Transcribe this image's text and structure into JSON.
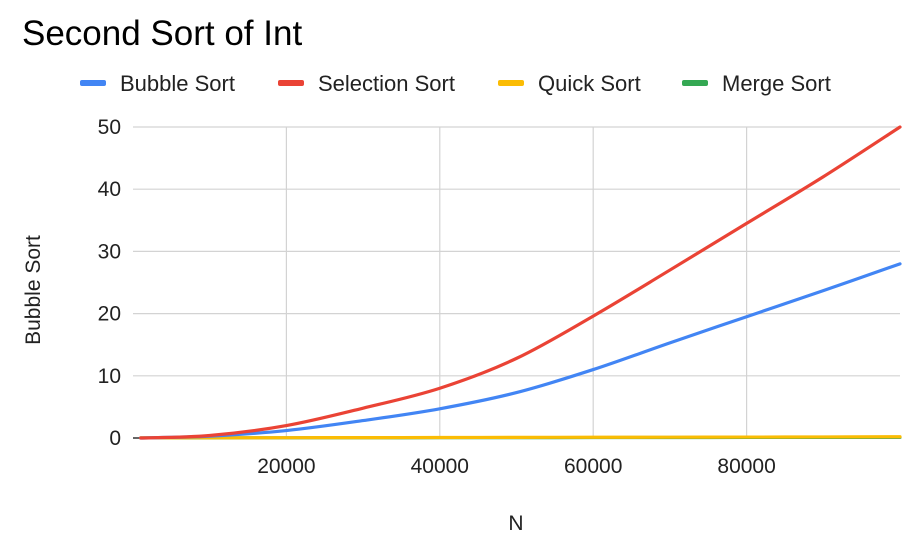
{
  "chart_data": {
    "type": "line",
    "title": "Second Sort of Int",
    "xlabel": "N",
    "ylabel": "Bubble Sort",
    "xlim": [
      0,
      100000
    ],
    "ylim": [
      0,
      50
    ],
    "x_ticks": [
      20000,
      40000,
      60000,
      80000
    ],
    "y_ticks": [
      0,
      10,
      20,
      30,
      40,
      50
    ],
    "grid": true,
    "legend_position": "top",
    "x": [
      1000,
      10000,
      20000,
      30000,
      40000,
      50000,
      60000,
      70000,
      80000,
      90000,
      100000
    ],
    "series": [
      {
        "name": "Bubble Sort",
        "color": "#4285F4",
        "values": [
          0.0,
          0.3,
          1.2,
          2.8,
          4.7,
          7.3,
          11.0,
          15.3,
          19.5,
          23.7,
          28.0
        ]
      },
      {
        "name": "Selection Sort",
        "color": "#EA4335",
        "values": [
          0.0,
          0.4,
          2.0,
          4.8,
          8.0,
          12.8,
          19.6,
          27.0,
          34.5,
          42.0,
          50.0
        ]
      },
      {
        "name": "Quick Sort",
        "color": "#FBBC04",
        "values": [
          0.02,
          0.03,
          0.05,
          0.06,
          0.08,
          0.1,
          0.12,
          0.13,
          0.15,
          0.17,
          0.2
        ]
      },
      {
        "name": "Merge Sort",
        "color": "#34A853",
        "values": [
          0.01,
          0.02,
          0.03,
          0.04,
          0.05,
          0.06,
          0.07,
          0.08,
          0.09,
          0.1,
          0.11
        ]
      }
    ]
  }
}
